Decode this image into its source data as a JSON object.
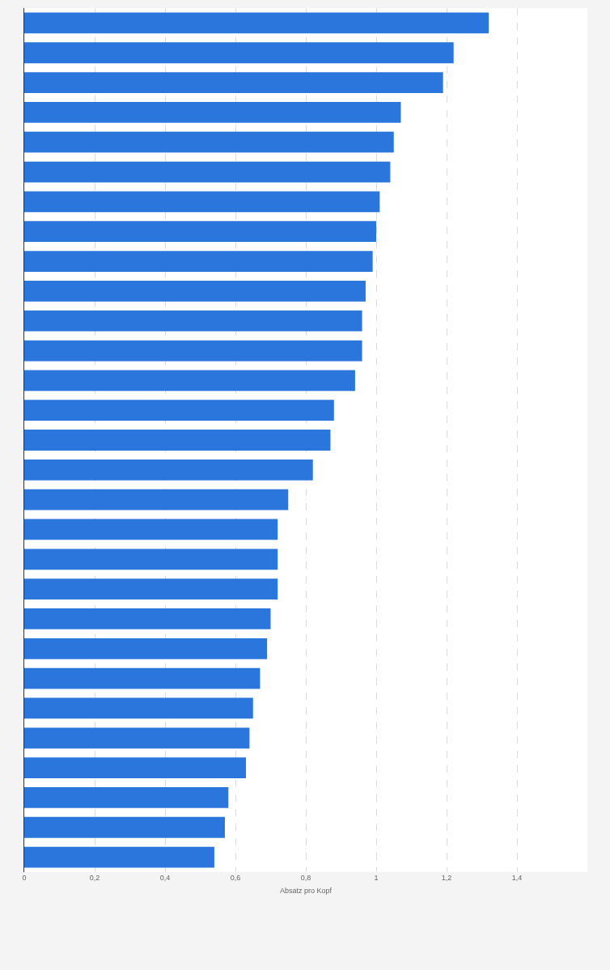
{
  "chart_data": {
    "type": "bar",
    "orientation": "horizontal",
    "xlabel": "Absatz pro Kopf",
    "categories": [
      null,
      null,
      null,
      null,
      null,
      null,
      null,
      null,
      null,
      null,
      null,
      null,
      null,
      null,
      null,
      null,
      null,
      null,
      null,
      null,
      null,
      null,
      null,
      null,
      null,
      null,
      null,
      null,
      null
    ],
    "values": [
      1.32,
      1.22,
      1.19,
      1.07,
      1.05,
      1.04,
      1.01,
      1.0,
      0.99,
      0.97,
      0.96,
      0.96,
      0.94,
      0.88,
      0.87,
      0.82,
      0.75,
      0.72,
      0.72,
      0.72,
      0.7,
      0.69,
      0.67,
      0.65,
      0.64,
      0.63,
      0.58,
      0.57,
      0.54
    ],
    "color": "#2a76dd",
    "xlim": [
      0,
      1.6
    ],
    "xticks": [
      0,
      {
        "value": 0.2,
        "label": "0,2"
      },
      {
        "value": 0.4,
        "label": "0,4"
      },
      {
        "value": 0.6,
        "label": "0,6"
      },
      {
        "value": 0.8,
        "label": "0,8"
      },
      1,
      {
        "value": 1.2,
        "label": "1,2"
      },
      {
        "value": 1.4,
        "label": "1,4"
      }
    ],
    "grid": "x",
    "tick_labels": "x"
  }
}
